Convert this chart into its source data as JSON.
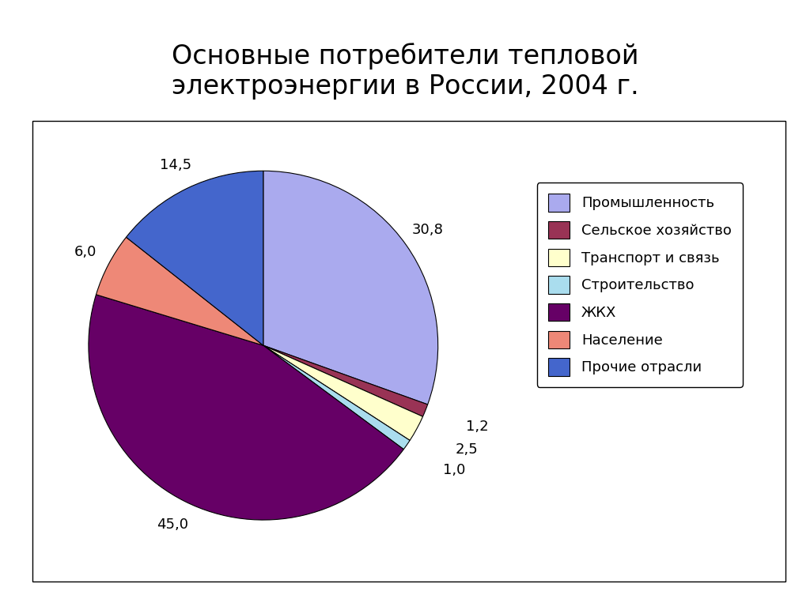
{
  "title": "Основные потребители тепловой\nэлектроэнергии в России, 2004 г.",
  "title_fontsize": 24,
  "slices": [
    {
      "label": "Промышленность",
      "value": 30.8,
      "color": "#aaaaee"
    },
    {
      "label": "Сельское хозяйство",
      "value": 1.2,
      "color": "#993355"
    },
    {
      "label": "Транспорт и связь",
      "value": 2.5,
      "color": "#ffffcc"
    },
    {
      "label": "Строительство",
      "value": 1.0,
      "color": "#aaddee"
    },
    {
      "label": "ЖКХ",
      "value": 45.0,
      "color": "#660066"
    },
    {
      "label": "Население",
      "value": 6.0,
      "color": "#ee8877"
    },
    {
      "label": "Прочие отрасли",
      "value": 14.5,
      "color": "#4466cc"
    }
  ],
  "label_fontsize": 13,
  "legend_fontsize": 13,
  "background_color": "#ffffff"
}
